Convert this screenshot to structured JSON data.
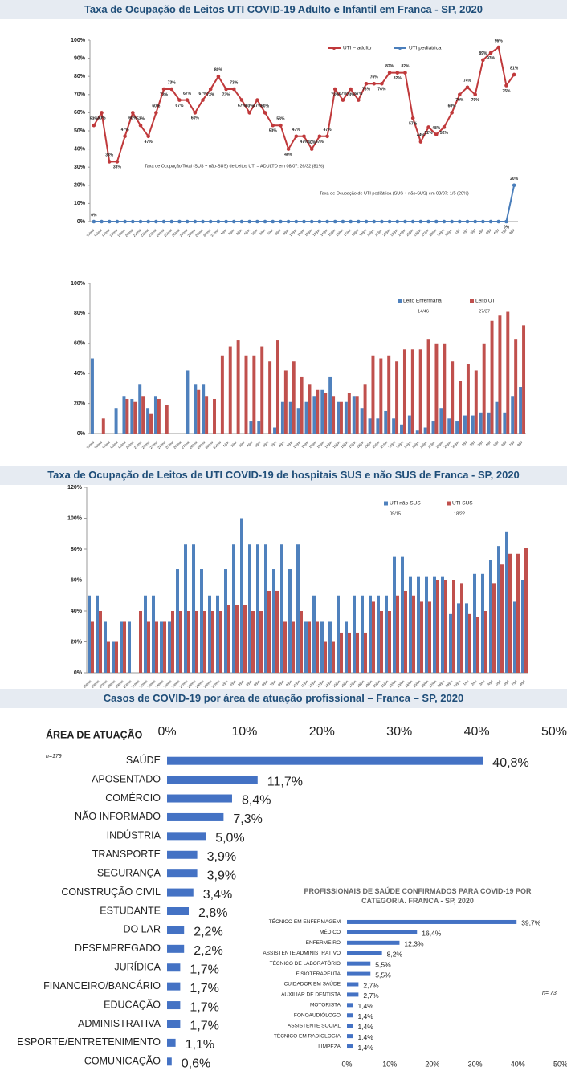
{
  "chart_data": [
    {
      "type": "line",
      "title": "Taxa de Ocupação de Leitos UTI COVID-19 Adulto e Infantil em Franca - SP, 2020",
      "categories": [
        "15/mai",
        "16/mai",
        "17/mai",
        "18/mai",
        "19/mai",
        "20/mai",
        "21/mai",
        "22/mai",
        "23/mai",
        "24/mai",
        "25/mai",
        "26/mai",
        "27/mai",
        "28/mai",
        "29/mai",
        "30/mai",
        "31/mai",
        "1/jun",
        "2/jun",
        "3/jun",
        "4/jun",
        "5/jun",
        "6/jun",
        "7/jun",
        "8/jun",
        "9/jun",
        "10/jun",
        "11/jun",
        "12/jun",
        "13/jun",
        "14/jun",
        "15/jun",
        "16/jun",
        "17/jun",
        "18/jun",
        "19/jun",
        "20/jun",
        "21/jun",
        "22/jun",
        "23/jun",
        "24/jun",
        "25/jun",
        "26/jun",
        "27/jun",
        "28/jun",
        "29/jun",
        "30/jun",
        "1/jul",
        "2/jul",
        "3/jul",
        "4/jul",
        "5/jul",
        "6/jul",
        "7/jul",
        "8/jul"
      ],
      "series": [
        {
          "name": "UTI – adulto",
          "color": "#c0393b",
          "values": [
            53,
            60,
            33,
            33,
            47,
            60,
            53,
            47,
            60,
            73,
            73,
            67,
            67,
            60,
            67,
            73,
            80,
            73,
            73,
            67,
            60,
            67,
            60,
            53,
            53,
            40,
            47,
            47,
            40,
            47,
            47,
            73,
            67,
            73,
            67,
            76,
            76,
            76,
            82,
            82,
            82,
            57,
            44,
            52,
            48,
            52,
            60,
            70,
            74,
            70,
            89,
            93,
            96,
            75,
            81
          ],
          "value_labels": [
            "53%",
            "60%",
            "33%",
            "33%",
            "47%",
            "60%",
            "53%",
            "47%",
            "60%",
            "73%",
            "73%",
            "67%",
            "67%",
            "60%",
            "67%",
            "73%",
            "80%",
            "73%",
            "73%",
            "67%",
            "60%",
            "67%",
            "60%",
            "53%",
            "53%",
            "40%",
            "47%",
            "47%",
            "40%",
            "47%",
            "47%",
            "73%",
            "67%",
            "73%",
            "67%",
            "76%",
            "76%",
            "76%",
            "82%",
            "82%",
            "82%",
            "57%",
            "44%",
            "52%",
            "48%",
            "52%",
            "60%",
            "70%",
            "74%",
            "70%",
            "89%",
            "93%",
            "96%",
            "75%",
            "81%"
          ]
        },
        {
          "name": "UTI pediátrica",
          "color": "#4a7ebb",
          "values": [
            0,
            0,
            0,
            0,
            0,
            0,
            0,
            0,
            0,
            0,
            0,
            0,
            0,
            0,
            0,
            0,
            0,
            0,
            0,
            0,
            0,
            0,
            0,
            0,
            0,
            0,
            0,
            0,
            0,
            0,
            0,
            0,
            0,
            0,
            0,
            0,
            0,
            0,
            0,
            0,
            0,
            0,
            0,
            0,
            0,
            0,
            0,
            0,
            0,
            0,
            0,
            0,
            0,
            0,
            20
          ],
          "value_labels": [
            "0%",
            null,
            null,
            null,
            null,
            null,
            null,
            null,
            null,
            null,
            null,
            null,
            null,
            null,
            null,
            null,
            null,
            null,
            null,
            null,
            null,
            null,
            null,
            null,
            null,
            null,
            null,
            null,
            null,
            null,
            null,
            null,
            null,
            null,
            null,
            null,
            null,
            null,
            null,
            null,
            null,
            null,
            null,
            null,
            null,
            null,
            null,
            null,
            null,
            null,
            null,
            null,
            null,
            "0%",
            "20%"
          ]
        }
      ],
      "annotations": [
        "Taxa de Ocupação Total (SUS + não-SUS) de  Leitos UTI – ADULTO em 08/07: 26/32 (81%)",
        "Taxa de Ocupação de UTI pediátrica (SUS + não-SUS) em 08/07: 1/5 (20%)"
      ],
      "ylim": [
        0,
        100
      ],
      "yticks": [
        {
          "value": 0,
          "label": "0%"
        },
        {
          "value": 10,
          "label": "10%"
        },
        {
          "value": 20,
          "label": "20%"
        },
        {
          "value": 30,
          "label": "30%"
        },
        {
          "value": 40,
          "label": "40%"
        },
        {
          "value": 50,
          "label": "50%"
        },
        {
          "value": 60,
          "label": "60%"
        },
        {
          "value": 70,
          "label": "70%"
        },
        {
          "value": 80,
          "label": "80%"
        },
        {
          "value": 90,
          "label": "90%"
        },
        {
          "value": 100,
          "label": "100%"
        }
      ],
      "grid": false
    },
    {
      "type": "bar",
      "categories": [
        "15/mai",
        "16/mai",
        "17/mai",
        "18/mai",
        "19/mai",
        "20/mai",
        "21/mai",
        "22/mai",
        "23/mai",
        "24/mai",
        "25/mai",
        "26/mai",
        "27/mai",
        "28/mai",
        "29/mai",
        "30/mai",
        "31/mai",
        "1/jun",
        "2/jun",
        "3/jun",
        "4/jun",
        "5/jun",
        "6/jun",
        "7/jun",
        "8/jun",
        "9/jun",
        "10/jun",
        "11/jun",
        "12/jun",
        "13/jun",
        "14/jun",
        "15/jun",
        "16/jun",
        "17/jun",
        "18/jun",
        "19/jun",
        "20/jun",
        "21/jun",
        "22/jun",
        "23/jun",
        "24/jun",
        "25/jun",
        "26/jun",
        "27/jun",
        "28/jun",
        "29/jun",
        "30/jun",
        "1/jul",
        "2/jul",
        "3/jul",
        "4/jul",
        "5/jul",
        "6/jul",
        "7/jul",
        "8/jul"
      ],
      "series": [
        {
          "name": "Leito Enfermaria",
          "color": "#4f81bd",
          "values": [
            50,
            null,
            null,
            17,
            25,
            23,
            33,
            17,
            25,
            null,
            null,
            null,
            42,
            33,
            33,
            null,
            null,
            null,
            null,
            null,
            8,
            8,
            null,
            4,
            21,
            21,
            17,
            21,
            25,
            29,
            38,
            21,
            21,
            25,
            17,
            10,
            10,
            15,
            10,
            6,
            12,
            2,
            4,
            8,
            17,
            10,
            8,
            12,
            12,
            14,
            14,
            21,
            14,
            25,
            31
          ]
        },
        {
          "name": "Leito UTI",
          "color": "#c0504d",
          "values": [
            null,
            10,
            null,
            null,
            23,
            21,
            25,
            13,
            23,
            19,
            null,
            null,
            null,
            29,
            25,
            23,
            52,
            58,
            62,
            52,
            52,
            58,
            48,
            62,
            42,
            48,
            38,
            33,
            29,
            27,
            25,
            21,
            27,
            25,
            33,
            52,
            50,
            52,
            48,
            56,
            56,
            56,
            63,
            60,
            60,
            48,
            35,
            46,
            42,
            60,
            75,
            79,
            81,
            63,
            72
          ]
        }
      ],
      "annotations": [
        "14/46",
        "27/37"
      ],
      "ylim": [
        0,
        100
      ],
      "yticks": [
        {
          "value": 0,
          "label": "0%"
        },
        {
          "value": 20,
          "label": "20%"
        },
        {
          "value": 40,
          "label": "40%"
        },
        {
          "value": 60,
          "label": "60%"
        },
        {
          "value": 80,
          "label": "80%"
        },
        {
          "value": 100,
          "label": "100%"
        }
      ],
      "grid": false
    },
    {
      "type": "bar",
      "title": "Taxa de Ocupação de Leitos de UTI  COVID-19 de hospitais SUS e não SUS de Franca - SP, 2020",
      "categories": [
        "15/mai",
        "16/mai",
        "17/mai",
        "18/mai",
        "19/mai",
        "20/mai",
        "21/mai",
        "22/mai",
        "23/mai",
        "24/mai",
        "25/mai",
        "26/mai",
        "27/mai",
        "28/mai",
        "29/mai",
        "30/mai",
        "31/mai",
        "1/jun",
        "2/jun",
        "3/jun",
        "4/jun",
        "5/jun",
        "6/jun",
        "7/jun",
        "8/jun",
        "9/jun",
        "10/jun",
        "11/jun",
        "12/jun",
        "13/jun",
        "14/jun",
        "15/jun",
        "16/jun",
        "17/jun",
        "18/jun",
        "19/jun",
        "20/jun",
        "21/jun",
        "22/jun",
        "23/jun",
        "24/jun",
        "25/jun",
        "26/jun",
        "27/jun",
        "28/jun",
        "29/jun",
        "30/jun",
        "1/jul",
        "2/jul",
        "3/jul",
        "4/jul",
        "5/jul",
        "6/jul",
        "7/jul",
        "8/jul"
      ],
      "series": [
        {
          "name": "UTI não-SUS",
          "color": "#4f81bd",
          "values": [
            50,
            50,
            33,
            20,
            33,
            33,
            null,
            50,
            50,
            33,
            33,
            67,
            83,
            83,
            67,
            50,
            50,
            67,
            83,
            100,
            83,
            83,
            83,
            67,
            83,
            67,
            83,
            33,
            50,
            33,
            33,
            50,
            33,
            50,
            50,
            50,
            50,
            50,
            75,
            75,
            62,
            62,
            62,
            62,
            62,
            38,
            45,
            45,
            64,
            64,
            73,
            82,
            91,
            46,
            60
          ]
        },
        {
          "name": "UTI SUS",
          "color": "#c0504d",
          "values": [
            33,
            40,
            20,
            20,
            33,
            null,
            40,
            33,
            33,
            33,
            40,
            40,
            40,
            40,
            40,
            40,
            40,
            44,
            44,
            44,
            40,
            40,
            53,
            53,
            33,
            33,
            40,
            33,
            33,
            20,
            20,
            26,
            26,
            26,
            26,
            46,
            40,
            40,
            50,
            53,
            50,
            46,
            46,
            60,
            60,
            60,
            58,
            38,
            36,
            40,
            58,
            70,
            77,
            77,
            81
          ]
        }
      ],
      "annotations": [
        "09/15",
        "18/22"
      ],
      "ylim": [
        0,
        120
      ],
      "yticks": [
        {
          "value": 0,
          "label": "0%"
        },
        {
          "value": 20,
          "label": "20%"
        },
        {
          "value": 40,
          "label": "40%"
        },
        {
          "value": 60,
          "label": "60%"
        },
        {
          "value": 80,
          "label": "80%"
        },
        {
          "value": 100,
          "label": "100%"
        },
        {
          "value": 120,
          "label": "120%"
        }
      ],
      "grid": false
    },
    {
      "type": "barh",
      "title": "Casos de COVID-19 por área de atuação profissional – Franca – SP, 2020",
      "xlabel": "ÁREA DE ATUAÇÃO",
      "note": "n=179",
      "color": "#4472c4",
      "categories": [
        "SAÚDE",
        "APOSENTADO",
        "COMÉRCIO",
        "NÃO INFORMADO",
        "INDÚSTRIA",
        "TRANSPORTE",
        "SEGURANÇA",
        "CONSTRUÇÃO CIVIL",
        "ESTUDANTE",
        "DO LAR",
        "DESEMPREGADO",
        "JURÍDICA",
        "FINANCEIRO/BANCÁRIO",
        "EDUCAÇÃO",
        "ADMINISTRATIVA",
        "ESPORTE/ENTRETENIMENTO",
        "COMUNICAÇÃO"
      ],
      "values": [
        40.8,
        11.7,
        8.4,
        7.3,
        5,
        3.9,
        3.9,
        3.4,
        2.8,
        2.2,
        2.2,
        1.7,
        1.7,
        1.7,
        1.7,
        1.1,
        0.6
      ],
      "value_labels": [
        "40,8%",
        "11,7%",
        "8,4%",
        "7,3%",
        "5,0%",
        "3,9%",
        "3,9%",
        "3,4%",
        "2,8%",
        "2,2%",
        "2,2%",
        "1,7%",
        "1,7%",
        "1,7%",
        "1,7%",
        "1,1%",
        "0,6%"
      ],
      "xlim": [
        0,
        50
      ],
      "xticks": [
        {
          "value": 0,
          "label": "0%"
        },
        {
          "value": 10,
          "label": "10%"
        },
        {
          "value": 20,
          "label": "20%"
        },
        {
          "value": 30,
          "label": "30%"
        },
        {
          "value": 40,
          "label": "40%"
        },
        {
          "value": 50,
          "label": "50%"
        }
      ]
    },
    {
      "type": "barh",
      "title": "PROFISSIONAIS DE SAÚDE CONFIRMADOS PARA COVID-19 POR CATEGORIA. FRANCA - SP, 2020",
      "note": "n= 73",
      "color": "#4472c4",
      "categories": [
        "TÉCNICO EM ENFERMAGEM",
        "MÉDICO",
        "ENFERMEIRO",
        "ASSISTENTE ADMINISTRATIVO",
        "TÉCNICO DE LABORATÓRIO",
        "FISIOTERAPEUTA",
        "CUIDADOR EM SAÚDE",
        "AUXILIAR DE DENTISTA",
        "MOTORISTA",
        "FONOAUDIÓLOGO",
        "ASSISTENTE SOCIAL",
        "TÉCNICO EM RADIOLOGIA",
        "LIMPEZA"
      ],
      "values": [
        39.7,
        16.4,
        12.3,
        8.2,
        5.5,
        5.5,
        2.7,
        2.7,
        1.4,
        1.4,
        1.4,
        1.4,
        1.4
      ],
      "value_labels": [
        "39,7%",
        "16,4%",
        "12,3%",
        "8,2%",
        "5,5%",
        "5,5%",
        "2,7%",
        "2,7%",
        "1,4%",
        "1,4%",
        "1,4%",
        "1,4%",
        "1,4%"
      ],
      "xlim": [
        0,
        50
      ],
      "xticks": [
        {
          "value": 0,
          "label": "0%"
        },
        {
          "value": 10,
          "label": "10%"
        },
        {
          "value": 20,
          "label": "20%"
        },
        {
          "value": 30,
          "label": "30%"
        },
        {
          "value": 40,
          "label": "40%"
        },
        {
          "value": 50,
          "label": "50%"
        }
      ]
    }
  ]
}
